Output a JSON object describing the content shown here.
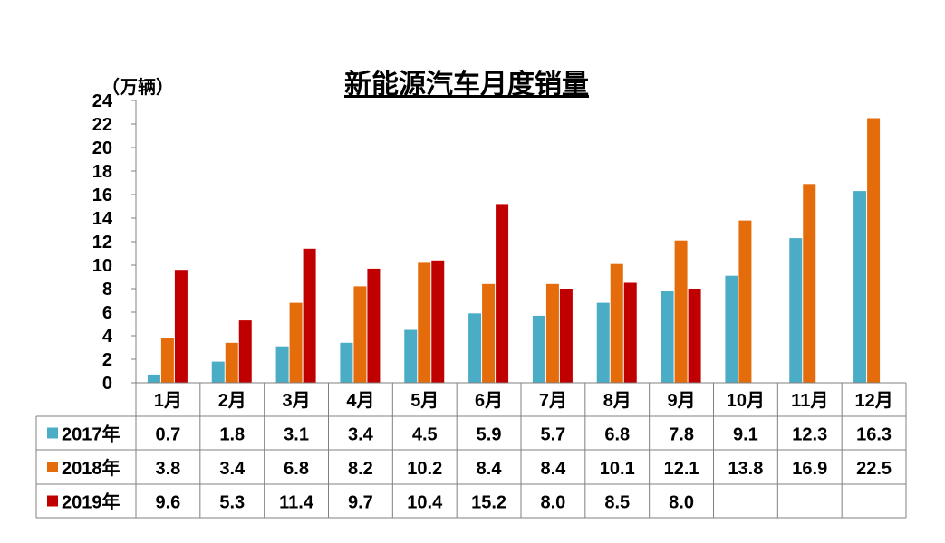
{
  "chart_data": {
    "type": "bar",
    "title": "新能源汽车月度销量",
    "ylabel": "（万辆）",
    "xlabel": "",
    "ylim": [
      0,
      24
    ],
    "yticks": [
      0,
      2,
      4,
      6,
      8,
      10,
      12,
      14,
      16,
      18,
      20,
      22,
      24
    ],
    "categories": [
      "1月",
      "2月",
      "3月",
      "4月",
      "5月",
      "6月",
      "7月",
      "8月",
      "9月",
      "10月",
      "11月",
      "12月"
    ],
    "series": [
      {
        "name": "2017年",
        "color": "#4bacc6",
        "values": [
          0.7,
          1.8,
          3.1,
          3.4,
          4.5,
          5.9,
          5.7,
          6.8,
          7.8,
          9.1,
          12.3,
          16.3
        ],
        "labels": [
          "0.7",
          "1.8",
          "3.1",
          "3.4",
          "4.5",
          "5.9",
          "5.7",
          "6.8",
          "7.8",
          "9.1",
          "12.3",
          "16.3"
        ]
      },
      {
        "name": "2018年",
        "color": "#e46c0a",
        "values": [
          3.8,
          3.4,
          6.8,
          8.2,
          10.2,
          8.4,
          8.4,
          10.1,
          12.1,
          13.8,
          16.9,
          22.5
        ],
        "labels": [
          "3.8",
          "3.4",
          "6.8",
          "8.2",
          "10.2",
          "8.4",
          "8.4",
          "10.1",
          "12.1",
          "13.8",
          "16.9",
          "22.5"
        ]
      },
      {
        "name": "2019年",
        "color": "#c00000",
        "values": [
          9.6,
          5.3,
          11.4,
          9.7,
          10.4,
          15.2,
          8.0,
          8.5,
          8.0,
          null,
          null,
          null
        ],
        "labels": [
          "9.6",
          "5.3",
          "11.4",
          "9.7",
          "10.4",
          "15.2",
          "8.0",
          "8.5",
          "8.0",
          "",
          "",
          ""
        ]
      }
    ],
    "grid": false,
    "legend": "data-table"
  }
}
